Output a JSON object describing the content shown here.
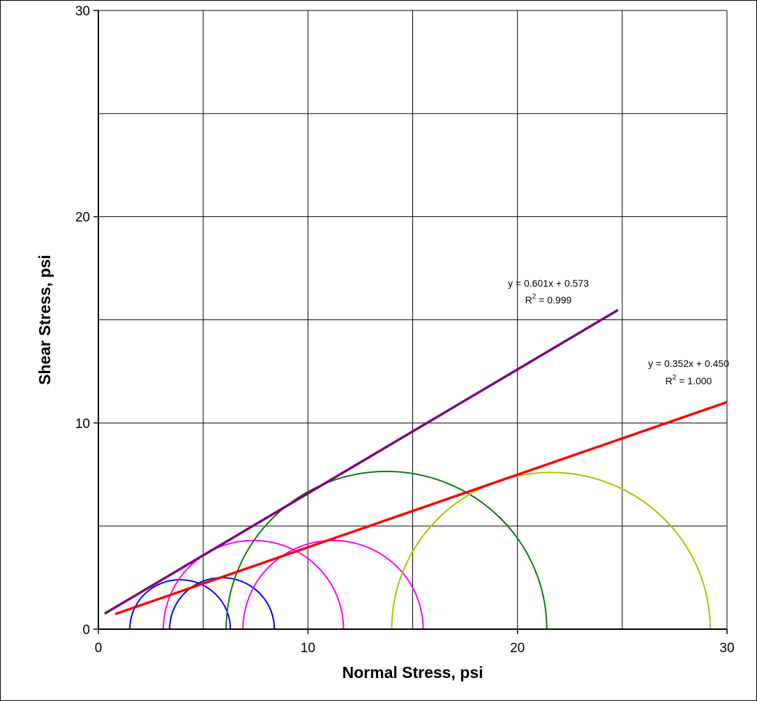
{
  "chart_data": {
    "type": "scatter",
    "title": "",
    "xlabel": "Normal Stress, psi",
    "ylabel": "Shear Stress, psi",
    "xlim": [
      0,
      30
    ],
    "ylim": [
      0,
      30
    ],
    "x_ticks": [
      "0",
      "10",
      "20",
      "30"
    ],
    "y_ticks": [
      "0",
      "10",
      "20",
      "30"
    ],
    "grid": true,
    "grid_step": 5,
    "legend": "none",
    "mohr_circles": [
      {
        "center": 3.9,
        "radius": 2.4,
        "color": "#0000ff"
      },
      {
        "center": 5.9,
        "radius": 2.5,
        "color": "#0000ff"
      },
      {
        "center": 7.4,
        "radius": 4.3,
        "color": "#ff00ff"
      },
      {
        "center": 11.2,
        "radius": 4.3,
        "color": "#ff00ff"
      },
      {
        "center": 13.75,
        "radius": 7.65,
        "color": "#008000"
      },
      {
        "center": 21.6,
        "radius": 7.6,
        "color": "#99cc00"
      }
    ],
    "series": [
      {
        "slope": 0.601,
        "intercept": 0.573,
        "x_range": [
          0.3,
          24.8
        ],
        "color": "#800080"
      },
      {
        "slope": 0.352,
        "intercept": 0.45,
        "x_range": [
          0.8,
          30
        ],
        "color": "#ff0000"
      }
    ],
    "annotations": [
      {
        "equation": "y = 0.601x + 0.573",
        "r2_label": "R",
        "r2_sup": "2",
        "r2_value": " = 0.999"
      },
      {
        "equation": "y = 0.352x + 0.450",
        "r2_label": "R",
        "r2_sup": "2",
        "r2_value": " = 1.000"
      }
    ]
  }
}
